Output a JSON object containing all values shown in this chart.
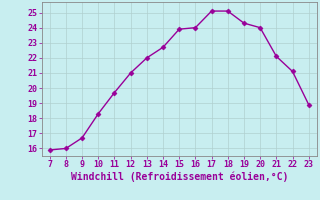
{
  "x": [
    7,
    8,
    9,
    10,
    11,
    12,
    13,
    14,
    15,
    16,
    17,
    18,
    19,
    20,
    21,
    22,
    23
  ],
  "y": [
    15.9,
    16.0,
    16.7,
    18.3,
    19.7,
    21.0,
    22.0,
    22.7,
    23.9,
    24.0,
    25.1,
    25.1,
    24.3,
    24.0,
    22.1,
    21.1,
    18.9
  ],
  "line_color": "#990099",
  "marker": "D",
  "marker_size": 2.5,
  "background_color": "#c8eef0",
  "grid_color": "#b0d0d0",
  "xlabel": "Windchill (Refroidissement éolien,°C)",
  "xlabel_color": "#990099",
  "xlim": [
    6.5,
    23.5
  ],
  "ylim": [
    15.5,
    25.7
  ],
  "xticks": [
    7,
    8,
    9,
    10,
    11,
    12,
    13,
    14,
    15,
    16,
    17,
    18,
    19,
    20,
    21,
    22,
    23
  ],
  "yticks": [
    16,
    17,
    18,
    19,
    20,
    21,
    22,
    23,
    24,
    25
  ],
  "tick_color": "#990099",
  "tick_fontsize": 6,
  "xlabel_fontsize": 7
}
